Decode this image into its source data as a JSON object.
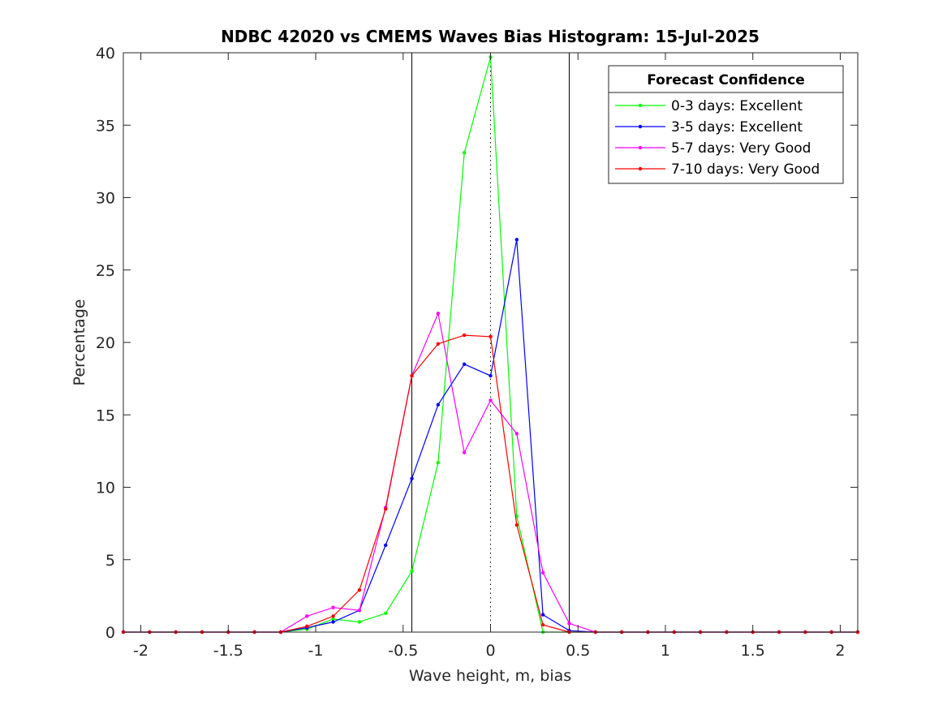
{
  "chart_data": {
    "type": "line",
    "title": "NDBC 42020 vs CMEMS Waves Bias Histogram: 15-Jul-2025",
    "xlabel": "Wave height, m, bias",
    "ylabel": "Percentage",
    "xlim": [
      -2.1,
      2.1
    ],
    "ylim": [
      0,
      40
    ],
    "xticks": [
      -2,
      -1.5,
      -1,
      -0.5,
      0,
      0.5,
      1,
      1.5,
      2
    ],
    "xtick_labels": [
      "-2",
      "-1.5",
      "-1",
      "-0.5",
      "0",
      "0.5",
      "1",
      "1.5",
      "2"
    ],
    "yticks": [
      0,
      5,
      10,
      15,
      20,
      25,
      30,
      35,
      40
    ],
    "ytick_labels": [
      "0",
      "5",
      "10",
      "15",
      "20",
      "25",
      "30",
      "35",
      "40"
    ],
    "grid": false,
    "legend": {
      "title": "Forecast Confidence",
      "placement": "top-right"
    },
    "reference_lines": {
      "solid_x": [
        -0.45,
        0.45
      ],
      "dotted_x": [
        0
      ]
    },
    "x": [
      -2.1,
      -1.95,
      -1.8,
      -1.65,
      -1.5,
      -1.35,
      -1.2,
      -1.05,
      -0.9,
      -0.75,
      -0.6,
      -0.45,
      -0.3,
      -0.15,
      0,
      0.15,
      0.3,
      0.45,
      0.6,
      0.75,
      0.9,
      1.05,
      1.2,
      1.35,
      1.5,
      1.65,
      1.8,
      1.95,
      2.1
    ],
    "series": [
      {
        "name": "0-3 days: Excellent",
        "color": "#00ff00",
        "values": [
          0,
          0,
          0,
          0,
          0,
          0,
          0,
          0.2,
          0.9,
          0.7,
          1.3,
          4.2,
          11.7,
          33.1,
          39.7,
          8.0,
          0,
          0,
          0,
          0,
          0,
          0,
          0,
          0,
          0,
          0,
          0,
          0,
          0
        ]
      },
      {
        "name": "3-5 days: Excellent",
        "color": "#0000ff",
        "values": [
          0,
          0,
          0,
          0,
          0,
          0,
          0,
          0.3,
          0.7,
          1.5,
          6.0,
          10.6,
          15.7,
          18.5,
          17.7,
          27.1,
          1.2,
          0.1,
          0,
          0,
          0,
          0,
          0,
          0,
          0,
          0,
          0,
          0,
          0
        ]
      },
      {
        "name": "5-7 days: Very Good",
        "color": "#ff00ff",
        "values": [
          0,
          0,
          0,
          0,
          0,
          0,
          0,
          1.1,
          1.7,
          1.5,
          8.6,
          17.7,
          22.0,
          12.4,
          16.0,
          13.7,
          4.1,
          0.6,
          0,
          0,
          0,
          0,
          0,
          0,
          0,
          0,
          0,
          0,
          0
        ]
      },
      {
        "name": "7-10 days: Very Good",
        "color": "#ff0000",
        "values": [
          0,
          0,
          0,
          0,
          0,
          0,
          0,
          0.4,
          1.1,
          2.9,
          8.5,
          17.7,
          19.9,
          20.5,
          20.4,
          7.4,
          0.5,
          0,
          0,
          0,
          0,
          0,
          0,
          0,
          0,
          0,
          0,
          0,
          0
        ]
      }
    ]
  }
}
